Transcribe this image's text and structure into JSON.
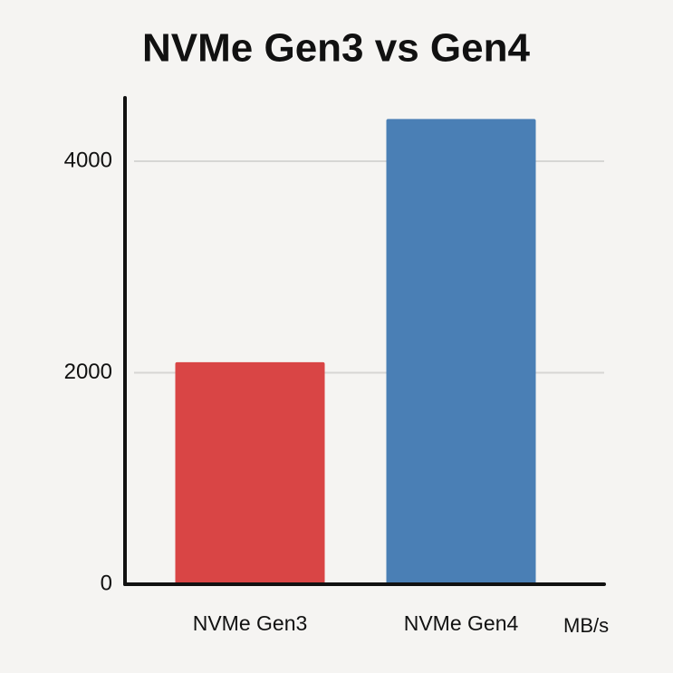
{
  "chart_data": {
    "type": "bar",
    "title": "NVMe Gen3 vs Gen4",
    "categories": [
      "NVMe Gen3",
      "NVMe Gen4"
    ],
    "values": [
      2100,
      4400
    ],
    "colors": [
      "#d94545",
      "#4a7fb5"
    ],
    "unit_label": "MB/s",
    "ylim": [
      0,
      4600
    ],
    "yticks": [
      0,
      2000,
      4000
    ],
    "grid": true
  }
}
